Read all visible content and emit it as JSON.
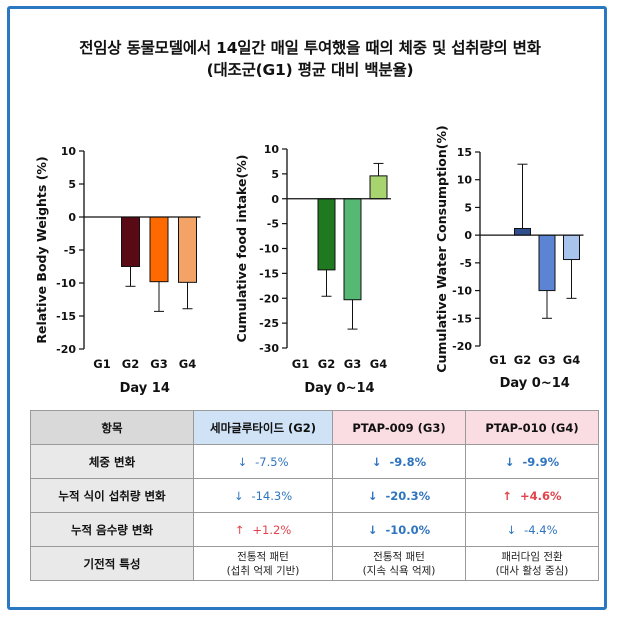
{
  "title_line1": "전임상 동물모델에서 14일간 매일 투여했을 때의 체중 및 섭취량의 변화",
  "title_line2": "(대조군(G1) 평균 대비 백분율)",
  "chart_data": [
    {
      "type": "bar",
      "ylabel": "Relative Body Weights (%)",
      "xlabel": "Day 14",
      "categories": [
        "G1",
        "G2",
        "G3",
        "G4"
      ],
      "values": [
        0,
        -7.5,
        -9.8,
        -9.9
      ],
      "errors": [
        0,
        3.0,
        4.5,
        4.0
      ],
      "colors": [
        "#ffffff",
        "#5a0a14",
        "#ff6a00",
        "#f4a366"
      ],
      "ylim": [
        -20,
        10
      ],
      "yticks": [
        10,
        5,
        0,
        -5,
        -10,
        -15,
        -20
      ]
    },
    {
      "type": "bar",
      "ylabel": "Cumulative food intake(%)",
      "xlabel": "Day 0~14",
      "categories": [
        "G1",
        "G2",
        "G3",
        "G4"
      ],
      "values": [
        0,
        -14.3,
        -20.3,
        4.6
      ],
      "errors": [
        0,
        5.3,
        5.9,
        2.5
      ],
      "colors": [
        "#ffffff",
        "#1f7a1f",
        "#55b873",
        "#a8d46f"
      ],
      "ylim": [
        -30,
        10
      ],
      "yticks": [
        10,
        5,
        0,
        -5,
        -10,
        -15,
        -20,
        -25,
        -30
      ]
    },
    {
      "type": "bar",
      "ylabel": "Cumulative Water Consumption(%)",
      "xlabel": "Day 0~14",
      "categories": [
        "G1",
        "G2",
        "G3",
        "G4"
      ],
      "values": [
        0,
        1.2,
        -10.0,
        -4.4
      ],
      "errors": [
        0,
        11.6,
        5.0,
        7.0
      ],
      "colors": [
        "#ffffff",
        "#2e4f8c",
        "#5b84d4",
        "#a9c4ec"
      ],
      "ylim": [
        -20,
        15
      ],
      "yticks": [
        15,
        10,
        5,
        0,
        -5,
        -10,
        -15,
        -20
      ]
    }
  ],
  "table": {
    "header": [
      "항목",
      "세마글루타이드 (G2)",
      "PTAP-009 (G3)",
      "PTAP-010 (G4)"
    ],
    "rows": [
      {
        "label": "체중 변화",
        "cells": [
          {
            "arrow": "↓",
            "text": "-7.5%",
            "dir": "down",
            "bold": false
          },
          {
            "arrow": "↓",
            "text": "-9.8%",
            "dir": "down",
            "bold": true
          },
          {
            "arrow": "↓",
            "text": "-9.9%",
            "dir": "down",
            "bold": true
          }
        ]
      },
      {
        "label": "누적 식이 섭취량 변화",
        "cells": [
          {
            "arrow": "↓",
            "text": "-14.3%",
            "dir": "down",
            "bold": false
          },
          {
            "arrow": "↓",
            "text": "-20.3%",
            "dir": "down",
            "bold": true
          },
          {
            "arrow": "↑",
            "text": "+4.6%",
            "dir": "up",
            "bold": true
          }
        ]
      },
      {
        "label": "누적 음수량 변화",
        "cells": [
          {
            "arrow": "↑",
            "text": "+1.2%",
            "dir": "up",
            "bold": false
          },
          {
            "arrow": "↓",
            "text": "-10.0%",
            "dir": "down",
            "bold": true
          },
          {
            "arrow": "↓",
            "text": "-4.4%",
            "dir": "down",
            "bold": false
          }
        ]
      }
    ],
    "mechanism": {
      "label": "기전적 특성",
      "cells": [
        {
          "line1": "전통적 패턴",
          "line2": "(섭취 억제 기반)"
        },
        {
          "line1": "전통적 패턴",
          "line2": "(지속 식욕 억제)"
        },
        {
          "line1": "패러다임 전환",
          "line2": "(대사 활성 중심)"
        }
      ]
    }
  }
}
